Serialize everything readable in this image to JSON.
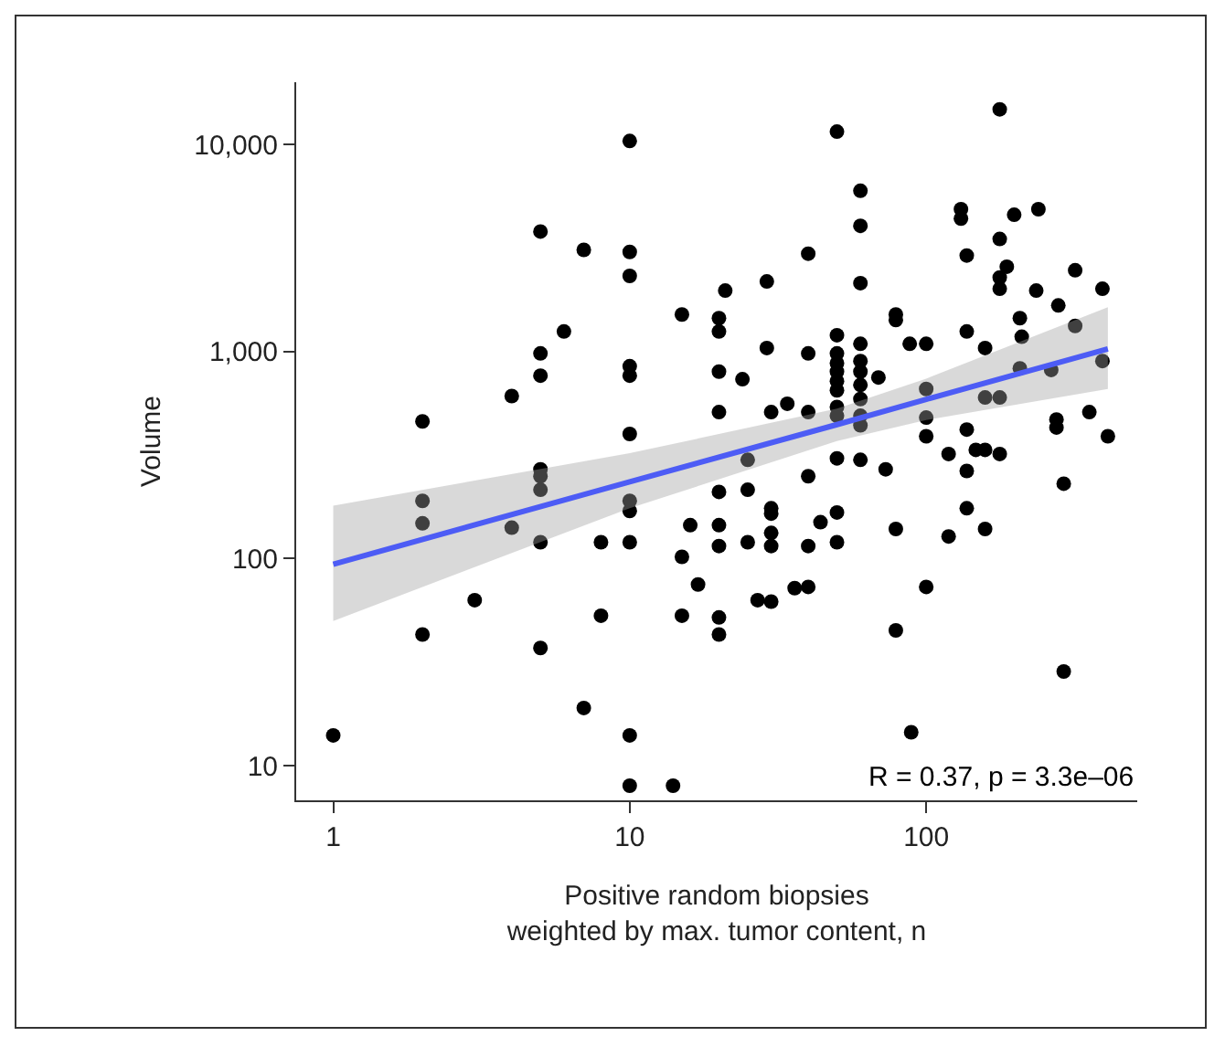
{
  "chart_data": {
    "type": "scatter",
    "xlabel": "Positive random biopsies\nweighted by max. tumor content, n",
    "ylabel": "Volume",
    "log": "xy",
    "grid": false,
    "xlim": [
      0.75,
      515
    ],
    "ylim": [
      6.8,
      20000
    ],
    "xticks": [
      1,
      10,
      100
    ],
    "yticks": [
      10,
      100,
      {
        "value": 1000,
        "label": "1,000"
      },
      {
        "value": 10000,
        "label": "10,000"
      }
    ],
    "annotations": [
      "R = 0.37, p = 3.3e–06"
    ],
    "series": [
      {
        "color": "#000000",
        "marker": "circle",
        "x": [
          1,
          2,
          2,
          2,
          2,
          3,
          4,
          4,
          5,
          5,
          5,
          5,
          5,
          5,
          5,
          5,
          6,
          7,
          7,
          8,
          8,
          10,
          10,
          10,
          10,
          10,
          10,
          10,
          10,
          10,
          10,
          10,
          14,
          15,
          15,
          15,
          16,
          17,
          20,
          20,
          20,
          20,
          20,
          20,
          20,
          20,
          20,
          21,
          24,
          25,
          25,
          25,
          27,
          29,
          29,
          30,
          30,
          30,
          30,
          30,
          30,
          34,
          36,
          40,
          40,
          40,
          40,
          40,
          40,
          44,
          50,
          50,
          50,
          50,
          50,
          50,
          50,
          50,
          50,
          50,
          50,
          50,
          60,
          60,
          60,
          60,
          60,
          60,
          60,
          60,
          60,
          60,
          60,
          69,
          73,
          79,
          79,
          79,
          79,
          88,
          89,
          100,
          100,
          100,
          100,
          100,
          119,
          119,
          131,
          131,
          137,
          137,
          137,
          137,
          137,
          147,
          158,
          158,
          158,
          158,
          177,
          177,
          177,
          177,
          177,
          177,
          187,
          198,
          207,
          207,
          210,
          235,
          239,
          264,
          275,
          275,
          279,
          291,
          291,
          318,
          318,
          355,
          393,
          393,
          410
        ],
        "values": [
          14,
          460,
          190,
          148,
          43,
          63,
          141,
          610,
          3800,
          980,
          765,
          270,
          250,
          215,
          120,
          37,
          1250,
          3100,
          19,
          120,
          53,
          10400,
          3030,
          2320,
          850,
          765,
          400,
          190,
          170,
          120,
          14,
          8,
          8,
          1510,
          102,
          53,
          145,
          75,
          1450,
          1250,
          800,
          510,
          210,
          145,
          115,
          52,
          43,
          1970,
          735,
          300,
          215,
          120,
          63,
          2180,
          1040,
          510,
          175,
          165,
          133,
          115,
          62,
          560,
          72,
          2970,
          980,
          510,
          250,
          115,
          73,
          150,
          11550,
          1200,
          980,
          880,
          800,
          720,
          650,
          540,
          490,
          305,
          167,
          120,
          5980,
          4050,
          2140,
          1090,
          900,
          800,
          690,
          590,
          490,
          440,
          300,
          750,
          270,
          1510,
          1420,
          139,
          45,
          1090,
          14.5,
          1090,
          660,
          480,
          390,
          73,
          320,
          128,
          4870,
          4390,
          2910,
          1250,
          420,
          265,
          175,
          335,
          1040,
          600,
          335,
          139,
          14800,
          3500,
          2280,
          2010,
          600,
          320,
          2570,
          4580,
          1450,
          830,
          1180,
          1970,
          4870,
          815,
          470,
          430,
          1670,
          230,
          28.5,
          2470,
          1330,
          510,
          2010,
          900,
          390
        ]
      },
      {
        "type": "line",
        "color": "#4d5cf5",
        "line_style": "solid",
        "x": [
          1,
          10,
          50,
          100,
          410
        ],
        "values": [
          94,
          235,
          444,
          588,
          1030
        ],
        "lower": [
          50,
          175,
          370,
          467,
          660
        ],
        "upper": [
          180,
          323,
          530,
          740,
          1640
        ]
      }
    ]
  }
}
